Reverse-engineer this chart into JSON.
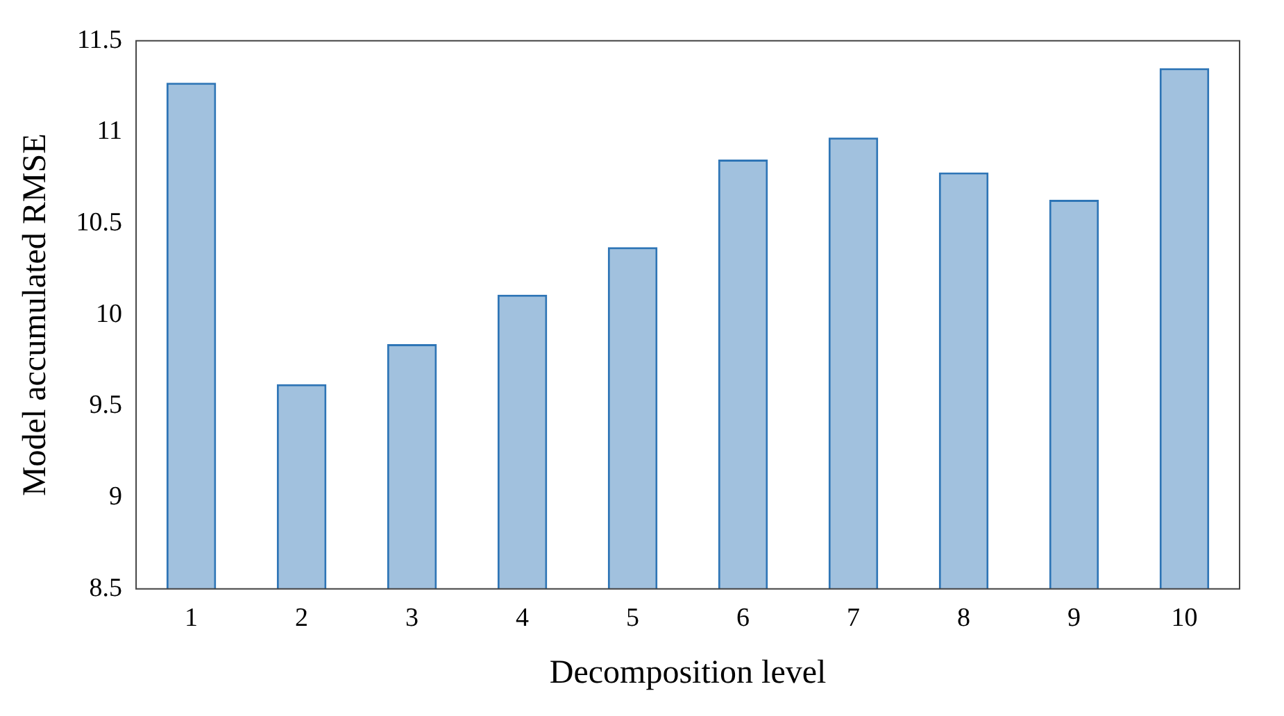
{
  "chart_data": {
    "type": "bar",
    "xlabel": "Decomposition level",
    "ylabel": "Model accumulated RMSE",
    "categories": [
      "1",
      "2",
      "3",
      "4",
      "5",
      "6",
      "7",
      "8",
      "9",
      "10"
    ],
    "values": [
      11.27,
      9.62,
      9.84,
      10.11,
      10.37,
      10.85,
      10.97,
      10.78,
      10.63,
      11.35
    ],
    "color": "#2e75b6",
    "ylim": [
      8.5,
      11.5
    ],
    "yticks": [
      8.5,
      9,
      9.5,
      10,
      10.5,
      11,
      11.5
    ],
    "grid": false
  }
}
